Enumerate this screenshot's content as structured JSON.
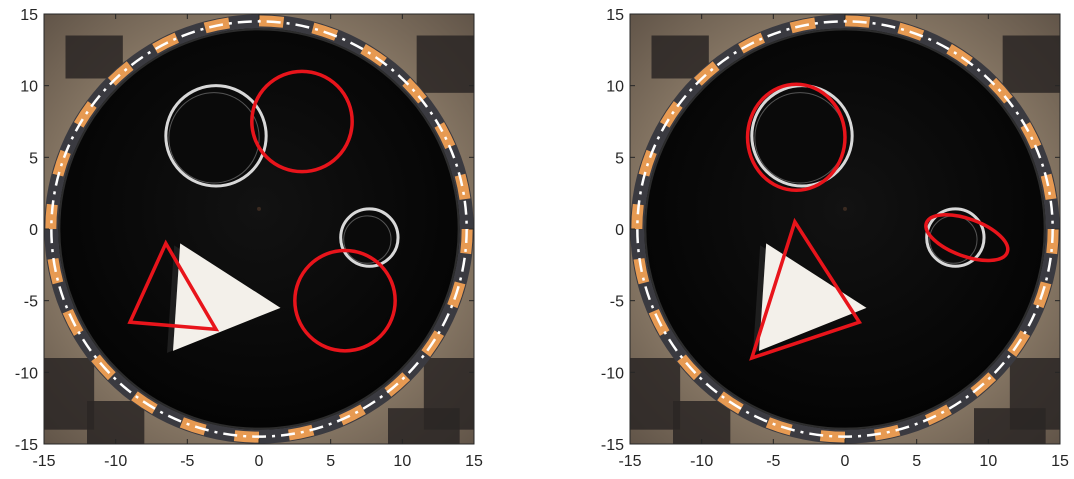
{
  "chart_data": [
    {
      "type": "scatter",
      "title": "",
      "xlabel": "",
      "ylabel": "",
      "xlim": [
        -15,
        15
      ],
      "ylim": [
        -15,
        15
      ],
      "xticks": [
        -15,
        -10,
        -5,
        0,
        5,
        10,
        15
      ],
      "yticks": [
        15,
        10,
        5,
        0,
        -5,
        -10,
        -15
      ],
      "grid": false,
      "background": "photo of black circular arena with orange/black tiled rim, white triangle, two cylindrical wells",
      "overlay_color": "#e8141b",
      "overlays": [
        {
          "shape": "circle",
          "center": [
            3.0,
            7.5
          ],
          "r": 3.5
        },
        {
          "shape": "circle",
          "center": [
            6.0,
            -5.0
          ],
          "r": 3.5
        },
        {
          "shape": "triangle",
          "vertices": [
            [
              -6.5,
              -1.0
            ],
            [
              -3.0,
              -7.0
            ],
            [
              -9.0,
              -6.5
            ]
          ]
        }
      ],
      "scene": {
        "arena_center": [
          0.0,
          0.0
        ],
        "arena_r": 14.0,
        "well_large": {
          "center": [
            -3.0,
            6.5
          ],
          "r": 3.5
        },
        "well_small": {
          "center": [
            7.7,
            -0.6
          ],
          "r": 2.0
        },
        "white_triangle": [
          [
            -5.5,
            -1.0
          ],
          [
            1.5,
            -5.5
          ],
          [
            -6.0,
            -8.5
          ]
        ]
      }
    },
    {
      "type": "scatter",
      "title": "",
      "xlabel": "",
      "ylabel": "",
      "xlim": [
        -15,
        15
      ],
      "ylim": [
        -15,
        15
      ],
      "xticks": [
        -15,
        -10,
        -5,
        0,
        5,
        10,
        15
      ],
      "yticks": [
        15,
        10,
        5,
        0,
        -5,
        -10,
        -15
      ],
      "grid": false,
      "background": "photo of black circular arena with orange/black tiled rim, white triangle, two cylindrical wells",
      "overlay_color": "#e8141b",
      "overlays": [
        {
          "shape": "ellipse",
          "center": [
            -3.4,
            6.4
          ],
          "rx": 3.4,
          "ry": 3.7,
          "angle": 0
        },
        {
          "shape": "ellipse",
          "center": [
            8.5,
            -0.6
          ],
          "rx": 3.0,
          "ry": 1.3,
          "angle": -20
        },
        {
          "shape": "triangle",
          "vertices": [
            [
              -3.5,
              0.5
            ],
            [
              1.0,
              -6.5
            ],
            [
              -6.5,
              -9.0
            ]
          ]
        }
      ],
      "scene": {
        "arena_center": [
          0.0,
          0.0
        ],
        "arena_r": 14.0,
        "well_large": {
          "center": [
            -3.0,
            6.5
          ],
          "r": 3.5
        },
        "well_small": {
          "center": [
            7.7,
            -0.6
          ],
          "r": 2.0
        },
        "white_triangle": [
          [
            -5.5,
            -1.0
          ],
          [
            1.5,
            -5.5
          ],
          [
            -6.0,
            -8.5
          ]
        ]
      }
    }
  ]
}
